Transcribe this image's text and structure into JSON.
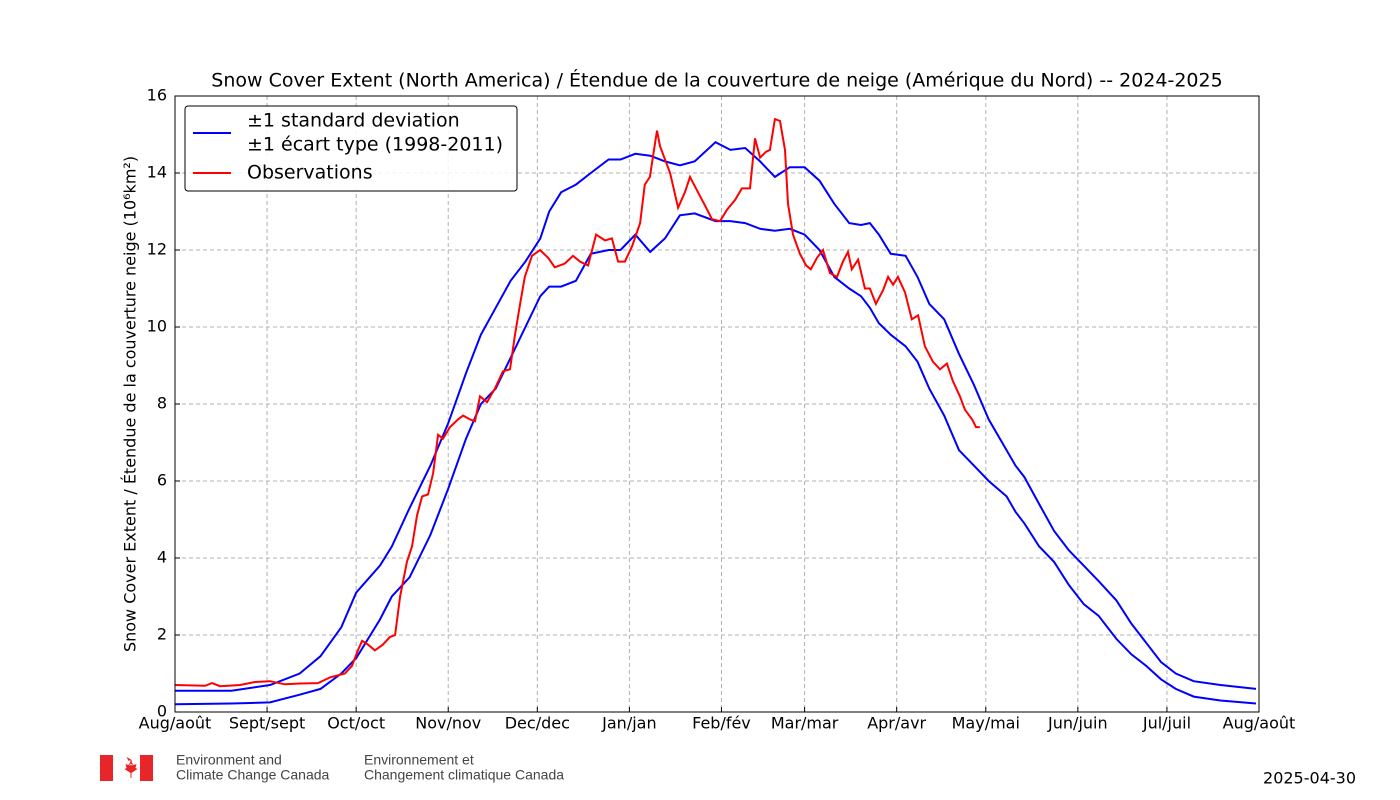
{
  "chart_data": {
    "type": "line",
    "title": "Snow Cover Extent (North America) / Étendue de la couverture de neige (Amérique du Nord) -- 2024-2025",
    "ylabel": "Snow Cover Extent / Étendue de la couverture neige (10⁶km²)",
    "xlim": [
      0,
      365
    ],
    "ylim": [
      0,
      16
    ],
    "xticks": [
      {
        "value": 0,
        "label": "Aug/août"
      },
      {
        "value": 31,
        "label": "Sept/sept"
      },
      {
        "value": 61,
        "label": "Oct/oct"
      },
      {
        "value": 92,
        "label": "Nov/nov"
      },
      {
        "value": 122,
        "label": "Dec/dec"
      },
      {
        "value": 153,
        "label": "Jan/jan"
      },
      {
        "value": 184,
        "label": "Feb/fév"
      },
      {
        "value": 212,
        "label": "Mar/mar"
      },
      {
        "value": 243,
        "label": "Apr/avr"
      },
      {
        "value": 273,
        "label": "May/mai"
      },
      {
        "value": 304,
        "label": "Jun/juin"
      },
      {
        "value": 334,
        "label": "Jul/juil"
      },
      {
        "value": 365,
        "label": "Aug/août"
      }
    ],
    "yticks": [
      0,
      2,
      4,
      6,
      8,
      10,
      12,
      14,
      16
    ],
    "grid": true,
    "legend": "upper left",
    "series": [
      {
        "name": [
          "±1 standard deviation",
          "±1 écart type (1998-2011)"
        ],
        "color": "#0000ff",
        "x": [
          0,
          19,
          32,
          42,
          49,
          56,
          61,
          69,
          73,
          79,
          86,
          92,
          98,
          103,
          108,
          113,
          118,
          123,
          126,
          130,
          135,
          140,
          146,
          150,
          155,
          160,
          165,
          170,
          175,
          182,
          187,
          192,
          197,
          202,
          207,
          212,
          217,
          222,
          227,
          231,
          234,
          237,
          241,
          246,
          250,
          254,
          259,
          264,
          269,
          274,
          280,
          283,
          286,
          291,
          296,
          301,
          306,
          311,
          317,
          322,
          327,
          332,
          337,
          343,
          352,
          364
        ],
        "values": [
          0.55,
          0.55,
          0.7,
          1.0,
          1.45,
          2.2,
          3.1,
          3.8,
          4.3,
          5.3,
          6.4,
          7.5,
          8.8,
          9.8,
          10.5,
          11.2,
          11.7,
          12.3,
          13.0,
          13.5,
          13.7,
          14.0,
          14.35,
          14.35,
          14.5,
          14.45,
          14.3,
          14.2,
          14.3,
          14.8,
          14.6,
          14.65,
          14.3,
          13.9,
          14.15,
          14.15,
          13.8,
          13.2,
          12.7,
          12.65,
          12.7,
          12.4,
          11.9,
          11.85,
          11.3,
          10.6,
          10.2,
          9.3,
          8.5,
          7.6,
          6.8,
          6.4,
          6.1,
          5.4,
          4.7,
          4.2,
          3.8,
          3.4,
          2.9,
          2.3,
          1.8,
          1.3,
          1.0,
          0.8,
          0.7,
          0.6
        ],
        "lower": [
          0.2,
          0.22,
          0.25,
          0.45,
          0.6,
          1.0,
          1.4,
          2.4,
          3.0,
          3.5,
          4.6,
          5.8,
          7.1,
          8.0,
          8.4,
          9.2,
          10.0,
          10.8,
          11.05,
          11.05,
          11.2,
          11.9,
          12.0,
          12.0,
          12.4,
          11.95,
          12.3,
          12.9,
          12.95,
          12.75,
          12.75,
          12.7,
          12.55,
          12.5,
          12.55,
          12.4,
          12.0,
          11.3,
          11.0,
          10.8,
          10.5,
          10.1,
          9.8,
          9.5,
          9.1,
          8.4,
          7.7,
          6.8,
          6.4,
          6.0,
          5.6,
          5.2,
          4.9,
          4.3,
          3.9,
          3.3,
          2.8,
          2.5,
          1.9,
          1.5,
          1.2,
          0.85,
          0.6,
          0.4,
          0.3,
          0.22
        ]
      },
      {
        "name": "Observations",
        "color": "#ff0000",
        "x": [
          0,
          10.1,
          12.5,
          15.2,
          21.9,
          26.9,
          32,
          37,
          42.1,
          48.1,
          52.2,
          57.2,
          59.6,
          61.6,
          63,
          65,
          67.3,
          70,
          72.4,
          74.1,
          75.8,
          78.1,
          79.8,
          81.5,
          83.2,
          85.2,
          86.9,
          88.6,
          90.2,
          92.6,
          95.3,
          97,
          99.3,
          101,
          102.7,
          105.1,
          107.7,
          110.4,
          112.8,
          114.5,
          116.2,
          117.8,
          120.2,
          122.9,
          125.6,
          127.9,
          131.3,
          134,
          136.4,
          139.1,
          141.8,
          144.8,
          147.1,
          149.2,
          151.5,
          153.9,
          156.6,
          158.2,
          159.9,
          161.3,
          162.3,
          163.3,
          166.7,
          169.4,
          171.7,
          173.4,
          176.1,
          178.5,
          180.8,
          183.5,
          185.9,
          188.6,
          190.9,
          193.6,
          195.3,
          197,
          199,
          200.3,
          202,
          203.7,
          205.4,
          206.4,
          208.1,
          210.4,
          212.5,
          214.1,
          216.2,
          218.2,
          220.5,
          222.9,
          224.9,
          226.6,
          227.9,
          230,
          232.3,
          234,
          236,
          238.4,
          240.1,
          241.8,
          243.4,
          245.8,
          248.1,
          250.2,
          252.5,
          255.2,
          257.6,
          259.9,
          261.9,
          264.3,
          266,
          268.4,
          269.7,
          271
        ],
        "values": [
          0.7,
          0.68,
          0.75,
          0.67,
          0.7,
          0.78,
          0.8,
          0.72,
          0.74,
          0.75,
          0.9,
          1.0,
          1.2,
          1.6,
          1.85,
          1.75,
          1.6,
          1.75,
          1.95,
          2.0,
          3.0,
          3.9,
          4.3,
          5.1,
          5.6,
          5.65,
          6.2,
          7.2,
          7.1,
          7.4,
          7.6,
          7.7,
          7.6,
          7.55,
          8.2,
          8.05,
          8.4,
          8.85,
          8.9,
          9.8,
          10.6,
          11.3,
          11.85,
          12.0,
          11.8,
          11.55,
          11.65,
          11.85,
          11.7,
          11.6,
          12.4,
          12.25,
          12.3,
          11.7,
          11.7,
          12.1,
          12.7,
          13.7,
          13.9,
          14.6,
          15.1,
          14.7,
          14.0,
          13.1,
          13.5,
          13.9,
          13.5,
          13.15,
          12.8,
          12.75,
          13.05,
          13.3,
          13.6,
          13.6,
          14.9,
          14.4,
          14.55,
          14.6,
          15.4,
          15.35,
          14.6,
          13.2,
          12.4,
          11.9,
          11.6,
          11.5,
          11.8,
          12.0,
          11.4,
          11.3,
          11.7,
          11.95,
          11.5,
          11.75,
          11.0,
          11.0,
          10.6,
          10.95,
          11.3,
          11.1,
          11.3,
          10.9,
          10.2,
          10.3,
          9.5,
          9.1,
          8.9,
          9.05,
          8.6,
          8.2,
          7.85,
          7.6,
          7.4,
          7.4
        ]
      }
    ]
  },
  "footer": {
    "org_en": [
      "Environment and",
      "Climate Change Canada"
    ],
    "org_fr": [
      "Environnement et",
      "Changement climatique Canada"
    ],
    "date": "2025-04-30"
  }
}
